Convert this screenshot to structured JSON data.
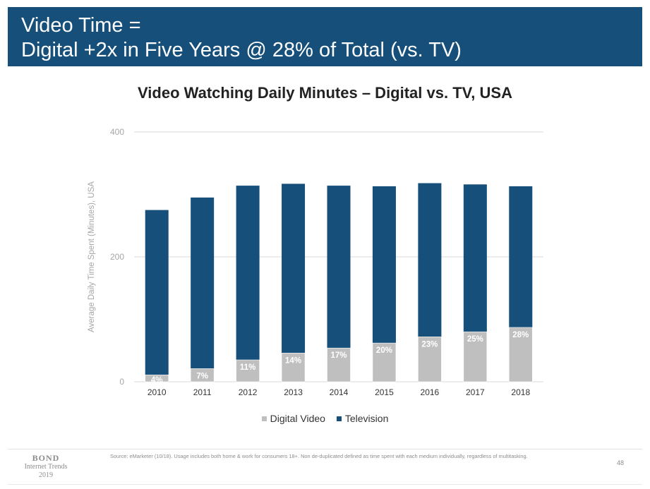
{
  "header": {
    "line1": "Video Time =",
    "line2": "Digital +2x in Five Years @ 28% of Total (vs. TV)"
  },
  "chart_data": {
    "type": "bar",
    "stacked": true,
    "title": "Video Watching Daily Minutes – Digital vs. TV, USA",
    "xlabel": "",
    "ylabel": "Average Daily Time Spent (Minutes), USA",
    "ylim": [
      0,
      400
    ],
    "yticks": [
      "0",
      "200",
      "400"
    ],
    "grid": true,
    "legend_position": "bottom",
    "categories": [
      "2010",
      "2011",
      "2012",
      "2013",
      "2014",
      "2015",
      "2016",
      "2017",
      "2018"
    ],
    "series": [
      {
        "name": "Digital Video",
        "color": "#bfbfbf",
        "values": [
          11,
          21,
          35,
          46,
          54,
          62,
          72,
          80,
          87
        ],
        "labels": [
          "4%",
          "7%",
          "11%",
          "14%",
          "17%",
          "20%",
          "23%",
          "25%",
          "28%"
        ]
      },
      {
        "name": "Television",
        "color": "#154f7a",
        "values": [
          264,
          274,
          279,
          271,
          260,
          251,
          246,
          236,
          226
        ]
      }
    ]
  },
  "footer": {
    "logo_line1": "BOND",
    "logo_line2": "Internet Trends",
    "logo_line3": "2019",
    "source": "Source: eMarketer (10/18). Usage includes both home & work for consumers 18+. Non de-duplicated defined as time spent with each medium individually, regardless of multitasking.",
    "page_number": "48"
  }
}
